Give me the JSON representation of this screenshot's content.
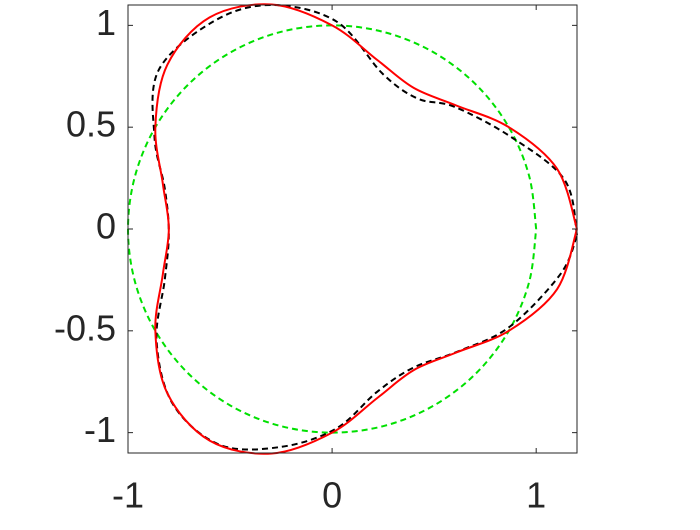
{
  "chart_data": {
    "type": "line",
    "xlim": [
      -1,
      1.2
    ],
    "ylim": [
      -1.1,
      1.1
    ],
    "xticks": [
      -1,
      0,
      1
    ],
    "yticks": [
      -1,
      -0.5,
      0,
      0.5,
      1
    ],
    "series": [
      {
        "color": "#00e000",
        "dash": "dashed",
        "x": [
          1,
          0.9659,
          0.866,
          0.7071,
          0.5,
          0.2588,
          0,
          -0.2588,
          -0.5,
          -0.7071,
          -0.866,
          -0.9659,
          -1,
          -0.9659,
          -0.866,
          -0.7071,
          -0.5,
          -0.2588,
          0,
          0.2588,
          0.5,
          0.7071,
          0.866,
          0.9659,
          1
        ],
        "values": [
          0,
          0.2588,
          0.5,
          0.7071,
          0.866,
          0.9659,
          1,
          0.9659,
          0.866,
          0.7071,
          0.5,
          0.2588,
          0,
          -0.2588,
          -0.5,
          -0.7071,
          -0.866,
          -0.9659,
          -1,
          -0.9659,
          -0.866,
          -0.7071,
          -0.5,
          -0.2588,
          0
        ]
      },
      {
        "color": "#000000",
        "dash": "dashed",
        "x": [
          1.2,
          1.14,
          0.88,
          0.6,
          0.42,
          0.25,
          0.02,
          -0.3,
          -0.58,
          -0.85,
          -0.87,
          -0.82,
          -0.8,
          -0.82,
          -0.86,
          -0.78,
          -0.55,
          -0.25,
          0.02,
          0.22,
          0.4,
          0.62,
          0.87,
          1.12,
          1.2
        ],
        "values": [
          -0.03,
          0.24,
          0.45,
          0.6,
          0.64,
          0.76,
          1.02,
          1.1,
          1.02,
          0.78,
          0.45,
          0.2,
          -0.02,
          -0.25,
          -0.55,
          -0.86,
          -1.06,
          -1.07,
          -0.98,
          -0.8,
          -0.68,
          -0.6,
          -0.48,
          -0.22,
          -0.03
        ]
      },
      {
        "color": "#ff0000",
        "dash": "solid",
        "x": [
          1.2,
          1.1025,
          0.866,
          0.6071,
          0.4,
          0.2222,
          0,
          -0.2954,
          -0.6,
          -0.8071,
          -0.866,
          -0.8293,
          -0.8,
          -0.8293,
          -0.866,
          -0.8071,
          -0.6,
          -0.2954,
          0,
          0.2222,
          0.4,
          0.6071,
          0.866,
          1.1025,
          1.2
        ],
        "values": [
          0,
          0.2954,
          0.5,
          0.6071,
          0.6928,
          0.8293,
          1,
          1.1025,
          1.0392,
          0.8071,
          0.5,
          0.2222,
          0,
          -0.2222,
          -0.5,
          -0.8071,
          -1.0392,
          -1.1025,
          -1,
          -0.8293,
          -0.6928,
          -0.6071,
          -0.5,
          -0.2954,
          0
        ]
      }
    ]
  }
}
